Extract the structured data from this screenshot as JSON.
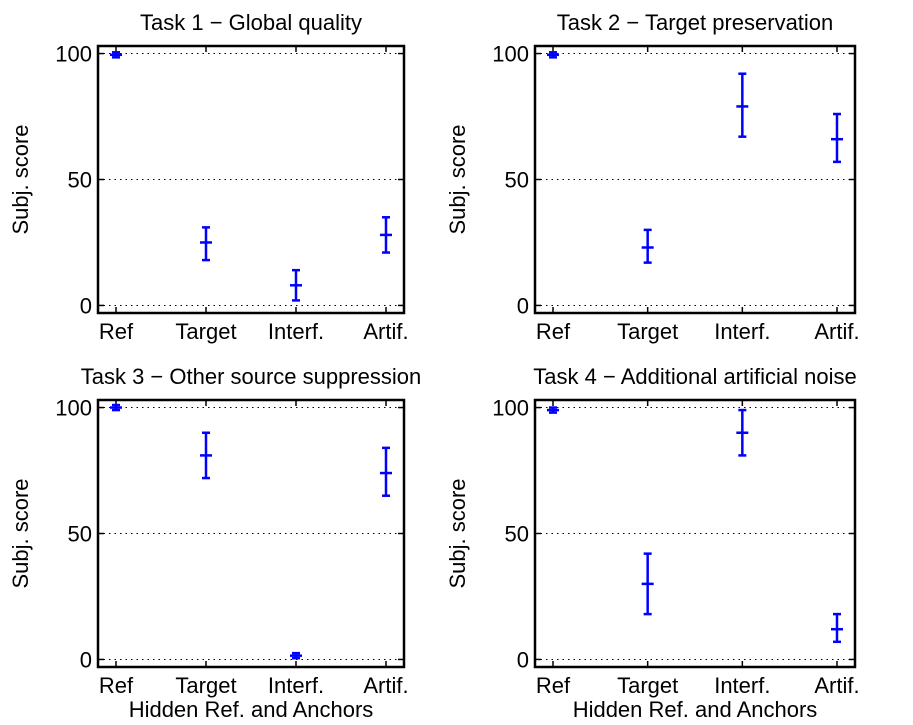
{
  "chart_data": [
    {
      "type": "scatter",
      "title": "Task 1 − Global quality",
      "ylabel": "Subj. score",
      "xlabel": "",
      "categories": [
        "Ref",
        "Target",
        "Interf.",
        "Artif."
      ],
      "yticks": [
        0,
        50,
        100
      ],
      "ylim": [
        -3,
        103
      ],
      "grid": true,
      "series": [
        {
          "color": "#0000ff",
          "mean": [
            99.5,
            25,
            8,
            28
          ],
          "lower": [
            98.5,
            18,
            2,
            21
          ],
          "upper": [
            100.5,
            31,
            14,
            35
          ]
        }
      ]
    },
    {
      "type": "scatter",
      "title": "Task 2 − Target preservation",
      "ylabel": "Subj. score",
      "xlabel": "",
      "categories": [
        "Ref",
        "Target",
        "Interf.",
        "Artif."
      ],
      "yticks": [
        0,
        50,
        100
      ],
      "ylim": [
        -3,
        103
      ],
      "grid": true,
      "series": [
        {
          "color": "#0000ff",
          "mean": [
            99.5,
            23,
            79,
            66
          ],
          "lower": [
            98.5,
            17,
            67,
            57
          ],
          "upper": [
            100.5,
            30,
            92,
            76
          ]
        }
      ]
    },
    {
      "type": "scatter",
      "title": "Task 3 − Other source suppression",
      "ylabel": "Subj. score",
      "xlabel": "Hidden Ref. and Anchors",
      "categories": [
        "Ref",
        "Target",
        "Interf.",
        "Artif."
      ],
      "yticks": [
        0,
        50,
        100
      ],
      "ylim": [
        -3,
        103
      ],
      "grid": true,
      "series": [
        {
          "color": "#0000ff",
          "mean": [
            100,
            81,
            1.5,
            74
          ],
          "lower": [
            99,
            72,
            0.5,
            65
          ],
          "upper": [
            101,
            90,
            2.5,
            84
          ]
        }
      ]
    },
    {
      "type": "scatter",
      "title": "Task 4 − Additional artificial noise",
      "ylabel": "Subj. score",
      "xlabel": "Hidden Ref. and Anchors",
      "categories": [
        "Ref",
        "Target",
        "Interf.",
        "Artif."
      ],
      "yticks": [
        0,
        50,
        100
      ],
      "ylim": [
        -3,
        103
      ],
      "grid": true,
      "series": [
        {
          "color": "#0000ff",
          "mean": [
            99,
            30,
            90,
            12
          ],
          "lower": [
            98,
            18,
            81,
            7
          ],
          "upper": [
            100,
            42,
            99,
            18
          ]
        }
      ]
    }
  ]
}
